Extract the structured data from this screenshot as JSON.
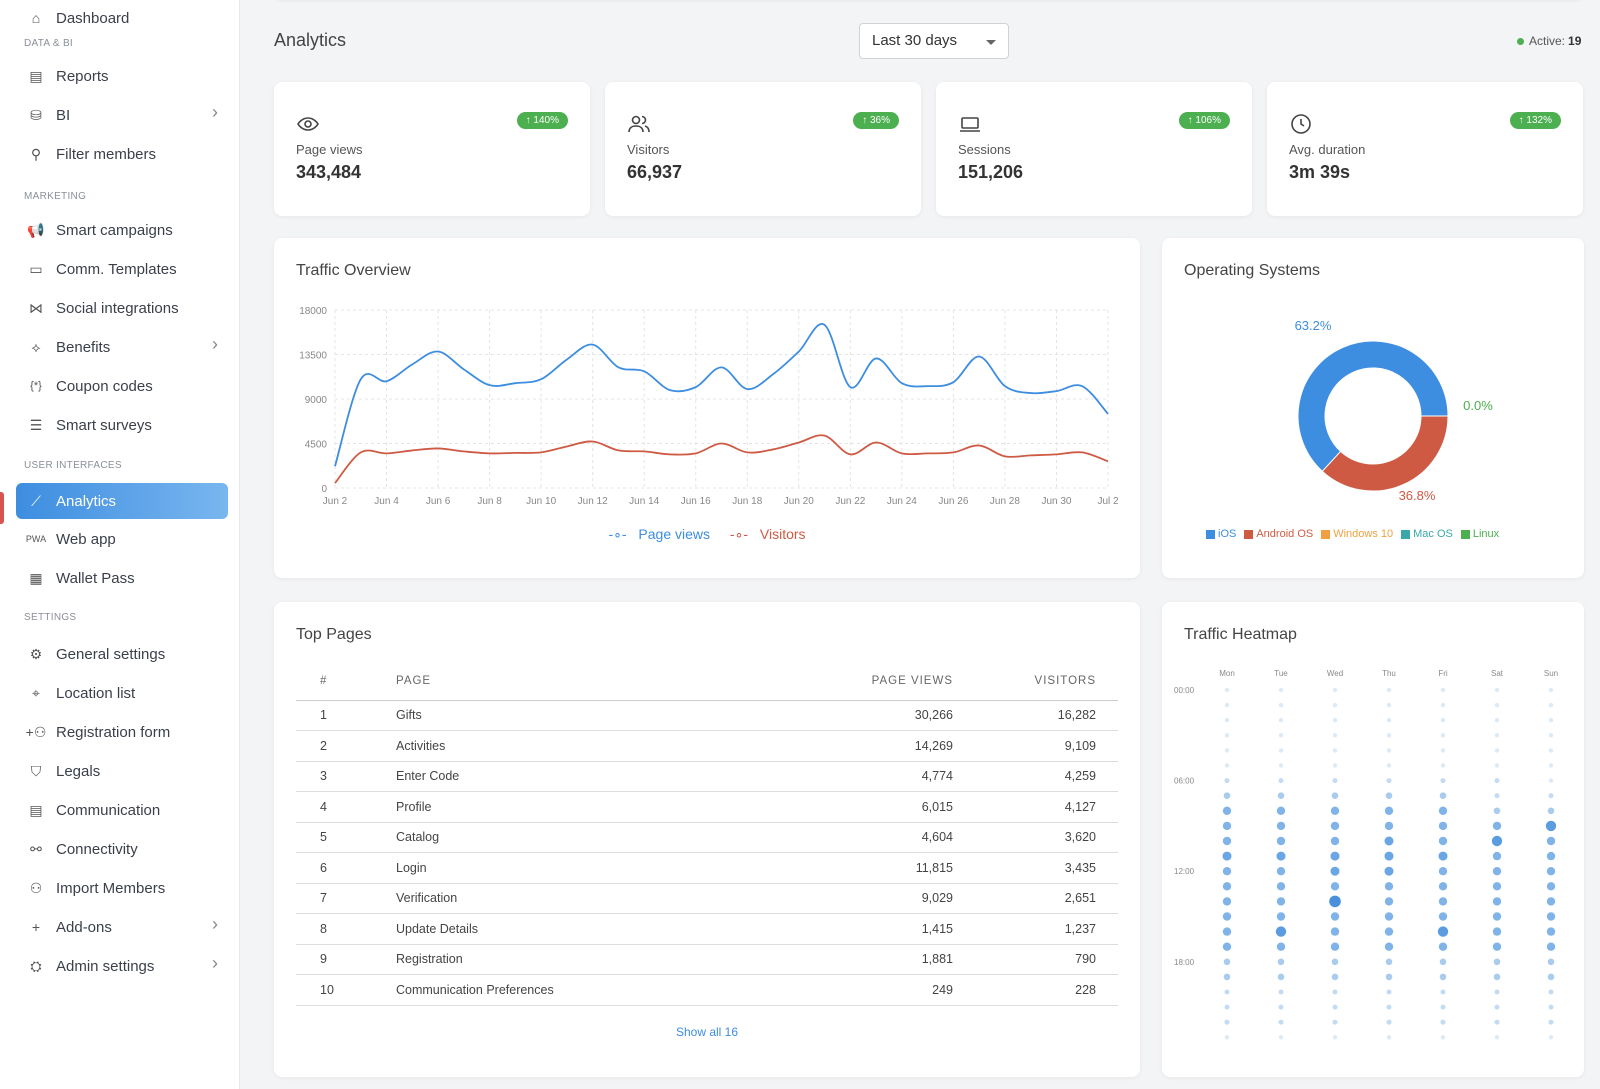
{
  "sidebar": {
    "items": [
      {
        "label": "Dashboard",
        "icon": "home-icon",
        "top": 0
      },
      {
        "label": "Reports",
        "icon": "report-icon"
      },
      {
        "label": "BI",
        "icon": "database-icon",
        "chevron": true
      },
      {
        "label": "Filter members",
        "icon": "user-filter-icon"
      },
      {
        "label": "Smart campaigns",
        "icon": "megaphone-icon"
      },
      {
        "label": "Comm. Templates",
        "icon": "message-icon"
      },
      {
        "label": "Social integrations",
        "icon": "share-icon"
      },
      {
        "label": "Benefits",
        "icon": "tag-icon",
        "chevron": true
      },
      {
        "label": "Coupon codes",
        "icon": "coupon-icon"
      },
      {
        "label": "Smart surveys",
        "icon": "list-icon"
      },
      {
        "label": "Analytics",
        "icon": "analytics-icon",
        "active": true
      },
      {
        "label": "Web app",
        "icon": "pwa-icon"
      },
      {
        "label": "Wallet Pass",
        "icon": "wallet-icon"
      },
      {
        "label": "General settings",
        "icon": "gear-icon"
      },
      {
        "label": "Location list",
        "icon": "location-pin-icon"
      },
      {
        "label": "Registration form",
        "icon": "user-add-icon"
      },
      {
        "label": "Legals",
        "icon": "shield-icon"
      },
      {
        "label": "Communication",
        "icon": "chat-settings-icon"
      },
      {
        "label": "Connectivity",
        "icon": "webhook-icon"
      },
      {
        "label": "Import Members",
        "icon": "user-import-icon"
      },
      {
        "label": "Add-ons",
        "icon": "plus-icon",
        "chevron": true
      },
      {
        "label": "Admin settings",
        "icon": "admin-icon",
        "chevron": true
      }
    ],
    "sections": [
      "DATA & BI",
      "MARKETING",
      "USER INTERFACES",
      "SETTINGS"
    ]
  },
  "header": {
    "title": "Analytics",
    "range": "Last 30 days",
    "active_label": "Active:",
    "active_count": "19"
  },
  "stats": [
    {
      "label": "Page views",
      "value": "343,484",
      "change": "↑ 140%",
      "icon": "eye-icon"
    },
    {
      "label": "Visitors",
      "value": "66,937",
      "change": "↑ 36%",
      "icon": "users-icon"
    },
    {
      "label": "Sessions",
      "value": "151,206",
      "change": "↑ 106%",
      "icon": "laptop-icon"
    },
    {
      "label": "Avg. duration",
      "value": "3m 39s",
      "change": "↑ 132%",
      "icon": "clock-icon"
    }
  ],
  "colors": {
    "accent": "#3d8de0",
    "red": "#cf5a44",
    "green": "#4caf50",
    "orange": "#f0a040",
    "teal": "#3aa8a8"
  },
  "traffic": {
    "title": "Traffic Overview",
    "chart_data": {
      "type": "line",
      "x": [
        "Jun 2",
        "Jun 3",
        "Jun 4",
        "Jun 5",
        "Jun 6",
        "Jun 7",
        "Jun 8",
        "Jun 9",
        "Jun 10",
        "Jun 11",
        "Jun 12",
        "Jun 13",
        "Jun 14",
        "Jun 15",
        "Jun 16",
        "Jun 17",
        "Jun 18",
        "Jun 19",
        "Jun 20",
        "Jun 21",
        "Jun 22",
        "Jun 23",
        "Jun 24",
        "Jun 25",
        "Jun 26",
        "Jun 27",
        "Jun 28",
        "Jun 29",
        "Jun 30",
        "Jul 1",
        "Jul 2"
      ],
      "tick_labels": [
        "Jun 2",
        "Jun 4",
        "Jun 6",
        "Jun 8",
        "Jun 10",
        "Jun 12",
        "Jun 14",
        "Jun 16",
        "Jun 18",
        "Jun 20",
        "Jun 22",
        "Jun 24",
        "Jun 26",
        "Jun 28",
        "Jun 30",
        "Jul 2"
      ],
      "series": [
        {
          "name": "Page views",
          "values": [
            2200,
            11000,
            10800,
            12500,
            13800,
            12000,
            10400,
            10600,
            11000,
            13000,
            14500,
            12200,
            11800,
            9900,
            10200,
            12200,
            10000,
            11500,
            13800,
            16500,
            10200,
            13100,
            10600,
            10300,
            10700,
            13300,
            10300,
            9600,
            9800,
            10300,
            7500
          ]
        },
        {
          "name": "Visitors",
          "values": [
            500,
            3600,
            3500,
            3800,
            4000,
            3700,
            3500,
            3550,
            3600,
            4200,
            4700,
            3800,
            3700,
            3400,
            3500,
            4500,
            3600,
            3900,
            4600,
            5300,
            3400,
            4600,
            3500,
            3500,
            3600,
            4300,
            3200,
            3300,
            3400,
            3600,
            2700
          ]
        }
      ],
      "ylim": [
        0,
        18000
      ],
      "yticks": [
        "18000",
        "13500",
        "9000",
        "4500",
        "0"
      ],
      "grid": true,
      "legend_position": "bottom"
    }
  },
  "os": {
    "title": "Operating Systems",
    "chart_data": {
      "type": "pie",
      "categories": [
        "iOS",
        "Android OS",
        "Windows 10",
        "Mac OS",
        "Linux"
      ],
      "values": [
        63.2,
        36.8,
        0.0,
        0.0,
        0.0
      ],
      "labels": [
        "63.2%",
        "36.8%",
        "0.0%"
      ],
      "legend_position": "bottom"
    }
  },
  "top_pages": {
    "title": "Top Pages",
    "columns": [
      "#",
      "PAGE",
      "PAGE VIEWS",
      "VISITORS"
    ],
    "rows": [
      [
        "1",
        "Gifts",
        "30,266",
        "16,282"
      ],
      [
        "2",
        "Activities",
        "14,269",
        "9,109"
      ],
      [
        "3",
        "Enter Code",
        "4,774",
        "4,259"
      ],
      [
        "4",
        "Profile",
        "6,015",
        "4,127"
      ],
      [
        "5",
        "Catalog",
        "4,604",
        "3,620"
      ],
      [
        "6",
        "Login",
        "11,815",
        "3,435"
      ],
      [
        "7",
        "Verification",
        "9,029",
        "2,651"
      ],
      [
        "8",
        "Update Details",
        "1,415",
        "1,237"
      ],
      [
        "9",
        "Registration",
        "1,881",
        "790"
      ],
      [
        "10",
        "Communication Preferences",
        "249",
        "228"
      ]
    ],
    "show_all": "Show all 16"
  },
  "heatmap": {
    "title": "Traffic Heatmap",
    "days": [
      "Mon",
      "Tue",
      "Wed",
      "Thu",
      "Fri",
      "Sat",
      "Sun"
    ],
    "hour_labels": [
      "00:00",
      "06:00",
      "12:00",
      "18:00"
    ],
    "chart_data": {
      "type": "heatmap",
      "x": [
        "Mon",
        "Tue",
        "Wed",
        "Thu",
        "Fri",
        "Sat",
        "Sun"
      ],
      "y": [
        "0",
        "1",
        "2",
        "3",
        "4",
        "5",
        "6",
        "7",
        "8",
        "9",
        "10",
        "11",
        "12",
        "13",
        "14",
        "15",
        "16",
        "17",
        "18",
        "19",
        "20",
        "21",
        "22",
        "23"
      ],
      "values": [
        [
          0,
          0,
          0,
          0,
          0,
          0,
          0
        ],
        [
          0,
          0,
          0,
          0,
          0,
          0,
          0
        ],
        [
          0,
          0,
          0,
          0,
          0,
          0,
          0
        ],
        [
          0,
          0,
          0,
          0,
          0,
          0,
          0
        ],
        [
          0,
          0,
          0,
          0,
          0,
          0,
          0
        ],
        [
          0,
          0,
          0,
          0,
          0,
          0,
          0
        ],
        [
          1,
          1,
          1,
          1,
          1,
          1,
          0
        ],
        [
          2,
          2,
          2,
          2,
          2,
          1,
          1
        ],
        [
          3,
          3,
          3,
          3,
          3,
          2,
          2
        ],
        [
          3,
          3,
          3,
          3,
          3,
          3,
          5
        ],
        [
          3,
          3,
          3,
          4,
          3,
          5,
          3
        ],
        [
          4,
          4,
          4,
          4,
          4,
          3,
          3
        ],
        [
          3,
          3,
          4,
          4,
          3,
          3,
          3
        ],
        [
          3,
          3,
          3,
          3,
          3,
          3,
          3
        ],
        [
          3,
          3,
          6,
          3,
          3,
          3,
          3
        ],
        [
          3,
          3,
          3,
          3,
          3,
          3,
          3
        ],
        [
          3,
          5,
          3,
          3,
          5,
          3,
          3
        ],
        [
          3,
          3,
          3,
          3,
          3,
          3,
          3
        ],
        [
          2,
          2,
          2,
          2,
          2,
          2,
          2
        ],
        [
          2,
          2,
          2,
          2,
          2,
          2,
          2
        ],
        [
          1,
          1,
          1,
          1,
          1,
          1,
          1
        ],
        [
          1,
          1,
          1,
          1,
          1,
          1,
          1
        ],
        [
          1,
          1,
          1,
          1,
          1,
          1,
          1
        ],
        [
          0,
          0,
          0,
          0,
          0,
          0,
          0
        ]
      ]
    }
  }
}
